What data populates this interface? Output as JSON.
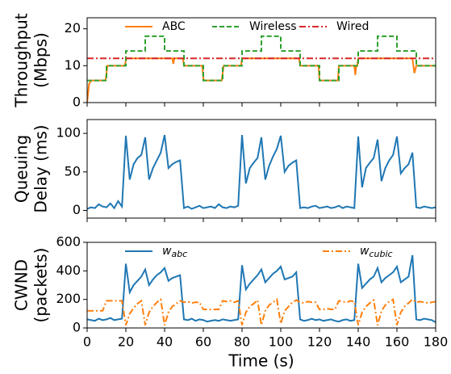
{
  "chart_data": [
    {
      "type": "line",
      "ylabel": [
        "Throughput",
        "(Mbps)"
      ],
      "xlim": [
        0,
        180
      ],
      "ylim": [
        0,
        23
      ],
      "xticks": [
        0,
        20,
        40,
        60,
        80,
        100,
        120,
        140,
        160,
        180
      ],
      "yticks": [
        0,
        10,
        20
      ],
      "show_xtick_labels": false,
      "legend": "upper center",
      "series": [
        {
          "name": "ABC",
          "color": "#ff7f0e",
          "linestyle": "solid",
          "x": [
            0,
            1,
            2,
            9.5,
            10,
            10.5,
            19.5,
            20,
            20.5,
            44,
            44.5,
            45,
            49.5,
            50,
            59.5,
            60,
            60.5,
            69.5,
            70,
            70.5,
            79.5,
            80,
            109.5,
            110,
            119.5,
            120,
            129.5,
            130,
            138,
            138.5,
            139,
            139.5,
            140,
            168,
            169,
            170,
            180
          ],
          "values": [
            0,
            5,
            6,
            6,
            8,
            10,
            10,
            11.5,
            12,
            12,
            10.5,
            12,
            12,
            10,
            10,
            6.5,
            6,
            6,
            8,
            10,
            10,
            12,
            12,
            10,
            10,
            6,
            6,
            10,
            10,
            7.5,
            10,
            10,
            12,
            12,
            8,
            10,
            10
          ]
        },
        {
          "name": "Wireless",
          "color": "#2ca02c",
          "linestyle": "dashed",
          "x": [
            0,
            10,
            10,
            20,
            20,
            30,
            30,
            40,
            40,
            50,
            50,
            60,
            60,
            70,
            70,
            80,
            80,
            90,
            90,
            100,
            100,
            110,
            110,
            120,
            120,
            130,
            130,
            140,
            140,
            150,
            150,
            160,
            160,
            170,
            170,
            180
          ],
          "values": [
            6,
            6,
            10,
            10,
            14,
            14,
            18,
            18,
            14,
            14,
            10,
            10,
            6,
            6,
            10,
            10,
            14,
            14,
            18,
            18,
            14,
            14,
            10,
            10,
            6,
            6,
            10,
            10,
            14,
            14,
            18,
            18,
            14,
            14,
            10,
            10
          ]
        },
        {
          "name": "Wired",
          "color": "#d62728",
          "linestyle": "dashdot",
          "x": [
            0,
            180
          ],
          "values": [
            12,
            12
          ]
        }
      ]
    },
    {
      "type": "line",
      "ylabel": [
        "Queuing",
        "Delay (ms)"
      ],
      "xlim": [
        0,
        180
      ],
      "ylim": [
        -10,
        118
      ],
      "xticks": [
        0,
        20,
        40,
        60,
        80,
        100,
        120,
        140,
        160,
        180
      ],
      "yticks": [
        0,
        50,
        100
      ],
      "show_xtick_labels": false,
      "x": [
        0,
        2,
        4,
        6,
        8,
        10,
        12,
        14,
        16,
        18,
        20,
        22,
        24,
        26,
        28,
        30,
        32,
        34,
        36,
        38,
        40,
        42,
        44,
        46,
        48,
        50,
        52,
        54,
        56,
        58,
        60,
        62,
        64,
        66,
        68,
        70,
        72,
        74,
        76,
        78,
        80,
        82,
        84,
        86,
        88,
        90,
        92,
        94,
        96,
        98,
        100,
        102,
        104,
        106,
        108,
        110,
        112,
        114,
        116,
        118,
        120,
        122,
        124,
        126,
        128,
        130,
        132,
        134,
        136,
        138,
        140,
        142,
        144,
        146,
        148,
        150,
        152,
        154,
        156,
        158,
        160,
        162,
        164,
        166,
        168,
        170,
        172,
        174,
        176,
        178,
        180
      ],
      "series": [
        {
          "color": "#1f77b4",
          "linestyle": "solid",
          "values": [
            2,
            4,
            3,
            8,
            5,
            4,
            9,
            3,
            12,
            5,
            97,
            40,
            60,
            68,
            72,
            95,
            40,
            55,
            65,
            75,
            98,
            55,
            60,
            63,
            65,
            3,
            5,
            2,
            4,
            6,
            3,
            4,
            5,
            3,
            8,
            4,
            3,
            5,
            4,
            6,
            98,
            35,
            55,
            62,
            68,
            95,
            40,
            58,
            70,
            80,
            97,
            50,
            58,
            62,
            65,
            3,
            4,
            3,
            5,
            6,
            3,
            4,
            5,
            3,
            4,
            6,
            3,
            5,
            4,
            3,
            96,
            30,
            55,
            62,
            68,
            92,
            38,
            55,
            65,
            72,
            96,
            48,
            55,
            60,
            75,
            4,
            3,
            5,
            4,
            3,
            4
          ]
        }
      ]
    },
    {
      "type": "line",
      "ylabel": [
        "CWND",
        "(packets)"
      ],
      "xlabel": "Time (s)",
      "xlim": [
        0,
        180
      ],
      "ylim": [
        0,
        600
      ],
      "xticks": [
        0,
        20,
        40,
        60,
        80,
        100,
        120,
        140,
        160,
        180
      ],
      "yticks": [
        0,
        200,
        400,
        600
      ],
      "show_xtick_labels": true,
      "legend": "upper spread",
      "x": [
        0,
        2,
        4,
        6,
        8,
        10,
        12,
        14,
        16,
        18,
        20,
        22,
        24,
        26,
        28,
        30,
        32,
        34,
        36,
        38,
        40,
        42,
        44,
        46,
        48,
        50,
        52,
        54,
        56,
        58,
        60,
        62,
        64,
        66,
        68,
        70,
        72,
        74,
        76,
        78,
        80,
        82,
        84,
        86,
        88,
        90,
        92,
        94,
        96,
        98,
        100,
        102,
        104,
        106,
        108,
        110,
        112,
        114,
        116,
        118,
        120,
        122,
        124,
        126,
        128,
        130,
        132,
        134,
        136,
        138,
        140,
        142,
        144,
        146,
        148,
        150,
        152,
        154,
        156,
        158,
        160,
        162,
        164,
        166,
        168,
        170,
        172,
        174,
        176,
        178,
        180
      ],
      "series": [
        {
          "name": "w",
          "name_sub": "abc",
          "color": "#1f77b4",
          "linestyle": "solid",
          "values": [
            60,
            55,
            50,
            65,
            55,
            60,
            70,
            55,
            60,
            65,
            450,
            250,
            300,
            330,
            360,
            410,
            300,
            340,
            370,
            390,
            420,
            330,
            350,
            360,
            370,
            60,
            55,
            65,
            50,
            60,
            55,
            45,
            50,
            55,
            50,
            60,
            55,
            50,
            55,
            60,
            440,
            270,
            310,
            340,
            370,
            410,
            320,
            350,
            380,
            400,
            430,
            340,
            350,
            360,
            390,
            60,
            50,
            55,
            65,
            55,
            60,
            50,
            55,
            60,
            50,
            45,
            55,
            60,
            50,
            55,
            450,
            280,
            310,
            340,
            360,
            420,
            320,
            350,
            370,
            390,
            430,
            320,
            340,
            360,
            510,
            60,
            55,
            65,
            60,
            55,
            40
          ]
        },
        {
          "name": "w",
          "name_sub": "cubic",
          "color": "#ff7f0e",
          "linestyle": "dashdot",
          "values": [
            120,
            120,
            120,
            120,
            120,
            190,
            190,
            190,
            190,
            190,
            20,
            100,
            140,
            170,
            190,
            20,
            110,
            150,
            180,
            200,
            20,
            110,
            150,
            170,
            190,
            180,
            185,
            175,
            180,
            180,
            130,
            130,
            130,
            130,
            130,
            190,
            185,
            190,
            180,
            190,
            20,
            110,
            150,
            170,
            195,
            20,
            120,
            160,
            180,
            200,
            30,
            120,
            150,
            180,
            195,
            180,
            175,
            185,
            180,
            180,
            130,
            130,
            135,
            130,
            130,
            190,
            185,
            180,
            190,
            185,
            20,
            110,
            150,
            175,
            195,
            20,
            120,
            160,
            185,
            200,
            20,
            110,
            150,
            175,
            200,
            180,
            185,
            180,
            175,
            180,
            185
          ]
        }
      ]
    }
  ]
}
